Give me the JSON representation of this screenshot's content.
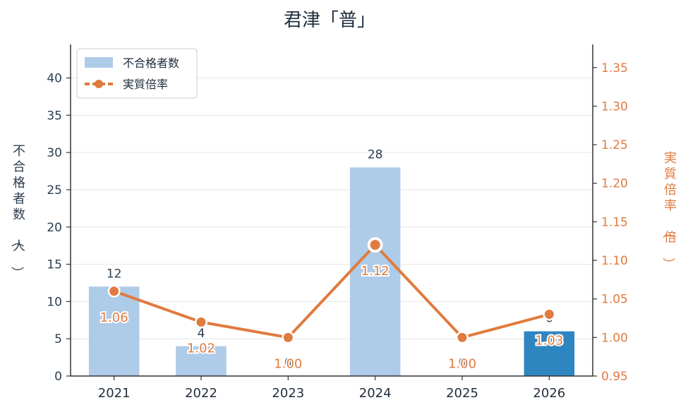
{
  "chart_data": {
    "type": "bar",
    "title": "君津「普」",
    "categories": [
      "2021",
      "2022",
      "2023",
      "2024",
      "2025",
      "2026"
    ],
    "series": [
      {
        "name": "不合格者数",
        "type": "bar",
        "axis": "left",
        "values": [
          12,
          4,
          0,
          28,
          0,
          6
        ],
        "labels": [
          "12",
          "4",
          "0",
          "28",
          "0",
          "6"
        ],
        "color": "#aecbe8",
        "highlight_color": "#2e86c1",
        "highlight_index": 5
      },
      {
        "name": "実質倍率",
        "type": "line",
        "axis": "right",
        "values": [
          1.06,
          1.02,
          1.0,
          1.12,
          1.0,
          1.03
        ],
        "labels": [
          "1.06",
          "1.02",
          "1.00",
          "1.12",
          "1.00",
          "1.03"
        ],
        "color": "#e07b3f"
      }
    ],
    "ylabel_left": "不合格者数（人）",
    "ylabel_right": "実質倍率（倍）",
    "ylim_left": [
      0,
      44.5
    ],
    "ylim_right": [
      0.95,
      1.38
    ],
    "yticks_left": [
      "0",
      "5",
      "10",
      "15",
      "20",
      "25",
      "30",
      "35",
      "40"
    ],
    "yticks_right": [
      "0.95",
      "1.00",
      "1.05",
      "1.10",
      "1.15",
      "1.20",
      "1.25",
      "1.30",
      "1.35"
    ],
    "grid": true,
    "legend_position": "top-left"
  }
}
